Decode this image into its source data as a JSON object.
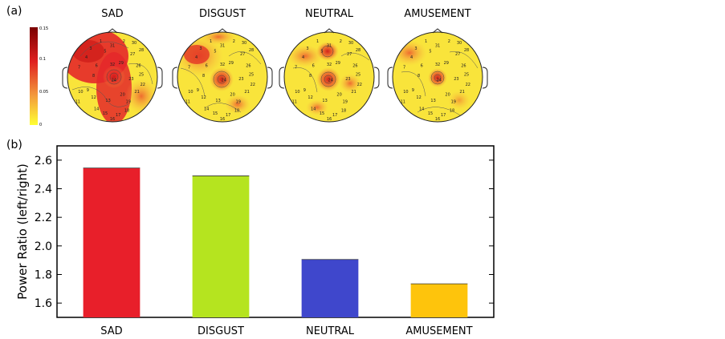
{
  "panel_a_label": "(a)",
  "panel_b_label": "(b)",
  "colorbar": {
    "ticks": [
      "0.15",
      "0.1",
      "0.05",
      "0"
    ],
    "colors": [
      "#8b0000",
      "#e32222",
      "#f39b3c",
      "#ffff33"
    ]
  },
  "topomaps": [
    {
      "title": "SAD",
      "electrode_labels": [
        "1",
        "2",
        "3",
        "4",
        "5",
        "6",
        "7",
        "8",
        "9",
        "10",
        "11",
        "12",
        "13",
        "14",
        "15",
        "16",
        "17",
        "18",
        "19",
        "20",
        "21",
        "22",
        "23",
        "24",
        "25",
        "26",
        "27",
        "28",
        "29",
        "30",
        "31",
        "32"
      ]
    },
    {
      "title": "DISGUST",
      "electrode_labels": [
        "1",
        "2",
        "3",
        "4",
        "5",
        "6",
        "7",
        "8",
        "9",
        "10",
        "11",
        "12",
        "13",
        "14",
        "15",
        "16",
        "17",
        "18",
        "19",
        "20",
        "21",
        "22",
        "23",
        "24",
        "25",
        "26",
        "27",
        "28",
        "29",
        "30",
        "31",
        "32"
      ]
    },
    {
      "title": "NEUTRAL",
      "electrode_labels": [
        "1",
        "2",
        "3",
        "4",
        "5",
        "6",
        "7",
        "8",
        "9",
        "10",
        "11",
        "12",
        "13",
        "14",
        "15",
        "16",
        "17",
        "18",
        "19",
        "20",
        "21",
        "22",
        "23",
        "24",
        "25",
        "26",
        "27",
        "28",
        "29",
        "30",
        "31",
        "32"
      ]
    },
    {
      "title": "AMUSEMENT",
      "electrode_labels": [
        "1",
        "2",
        "3",
        "4",
        "5",
        "6",
        "7",
        "8",
        "9",
        "10",
        "11",
        "12",
        "13",
        "14",
        "15",
        "16",
        "17",
        "18",
        "19",
        "20",
        "21",
        "22",
        "23",
        "24",
        "25",
        "26",
        "27",
        "28",
        "29",
        "30",
        "31",
        "32"
      ]
    }
  ],
  "chart_data": {
    "type": "bar",
    "categories": [
      "SAD",
      "DISGUST",
      "NEUTRAL",
      "AMUSEMENT"
    ],
    "values": [
      2.545,
      2.49,
      1.905,
      1.735
    ],
    "colors": [
      "#e81f2a",
      "#b5e41f",
      "#3f47cc",
      "#fec40c"
    ],
    "title": "",
    "xlabel": "",
    "ylabel": "Power Ratio (left/right)",
    "ylim": [
      1.5,
      2.7
    ],
    "yticks": [
      "1.6",
      "1.8",
      "2.0",
      "2.2",
      "2.4",
      "2.6"
    ],
    "grid": false
  }
}
